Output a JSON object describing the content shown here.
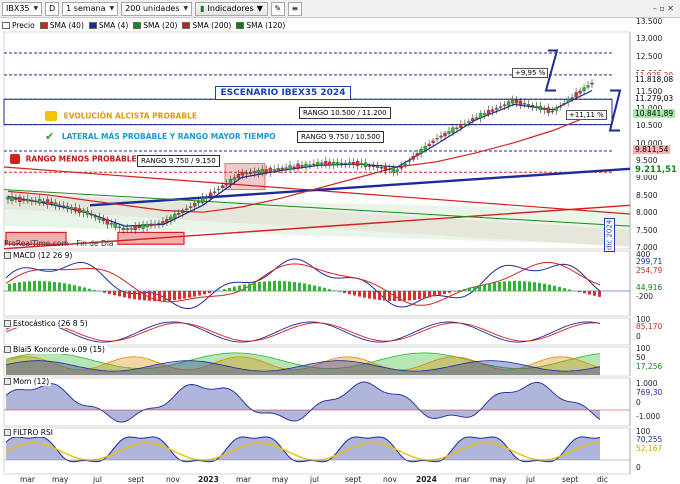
{
  "toolbar": {
    "symbol": "IBX35",
    "period_icon": "D",
    "timeframe": "1 semana",
    "units": "200 unidades",
    "indicators_button": "Indicadores",
    "window_controls": "– ▫ ✕"
  },
  "legend": {
    "items": [
      {
        "label": "Precio",
        "color": "#ffffff"
      },
      {
        "label": "SMA (40)",
        "color": "#d62020"
      },
      {
        "label": "SMA (4)",
        "color": "#1d2b9a"
      },
      {
        "label": "SMA (20)",
        "color": "#1a8a1a"
      },
      {
        "label": "SMA (200)",
        "color": "#c02020"
      },
      {
        "label": "SMA (120)",
        "color": "#108010"
      }
    ]
  },
  "main_chart": {
    "title": "ESCENARIO IBEX35 2024",
    "watermark": "ProRealTime.com - Fin de Día",
    "price_axis": [
      "13.500",
      "13.000",
      "12.500",
      "12.000",
      "11.500",
      "11.000",
      "10.500",
      "10.000",
      "9.500",
      "9.000",
      "8.500",
      "8.000",
      "7.500",
      "7.000"
    ],
    "price_tags": [
      {
        "text": "11.925,20",
        "color": "#d62020",
        "bg": "#ffffff"
      },
      {
        "text": "11.818,08",
        "color": "#000000",
        "bg": "#ffffff"
      },
      {
        "text": "11.279,03",
        "color": "#000000",
        "bg": "#ffffff"
      },
      {
        "text": "10.841,89",
        "color": "#000000",
        "bg": "#a8e6a8"
      },
      {
        "text": "9.811,54",
        "color": "#000000",
        "bg": "#f5b0b0"
      },
      {
        "text": "9.211,51",
        "color": "#118811",
        "bg": "#ffffff"
      }
    ],
    "annotations": {
      "evolucion": "EVOLUCIÓN ALCISTA PROBABLE",
      "lateral": "LATERAL MÁS PROBABLE Y RANGO MAYOR TIEMPO",
      "rango_menos": "RANGO MENOS PROBABLE",
      "rango_a": "RANGO 10.500 / 11.200",
      "rango_b": "RANGO 9.750 / 10.500",
      "rango_c": "RANGO 9.750 / 9.150",
      "pct_up": "+9,95 %",
      "pct_mid": "+11,11 %",
      "dic": "dic 2024"
    }
  },
  "panels": {
    "macd": {
      "label": "MACD (12 26 9)",
      "values": [
        "299,71",
        "254,79",
        "44,916"
      ],
      "axis": [
        "400",
        "-200"
      ]
    },
    "stoch": {
      "label": "Estocástico (26 8 5)",
      "values": [
        "85,170"
      ],
      "axis": [
        "100",
        "0"
      ]
    },
    "blai5": {
      "label": "Blai5 Koncorde v.09 (15)",
      "values": [
        "17,256"
      ],
      "axis": [
        "100",
        "50"
      ]
    },
    "mom": {
      "label": "Mom (12)",
      "values": [
        "769,30"
      ],
      "axis": [
        "1.000",
        "0",
        "-1.000"
      ]
    },
    "rsi": {
      "label": "FILTRO RSI",
      "values": [
        "70,255",
        "52,167"
      ],
      "axis": [
        "100",
        "50",
        "0"
      ]
    }
  },
  "x_axis": [
    {
      "label": "mar",
      "bold": false
    },
    {
      "label": "may",
      "bold": false
    },
    {
      "label": "jul",
      "bold": false
    },
    {
      "label": "sept",
      "bold": false
    },
    {
      "label": "nov",
      "bold": false
    },
    {
      "label": "2023",
      "bold": true
    },
    {
      "label": "mar",
      "bold": false
    },
    {
      "label": "may",
      "bold": false
    },
    {
      "label": "jul",
      "bold": false
    },
    {
      "label": "sept",
      "bold": false
    },
    {
      "label": "nov",
      "bold": false
    },
    {
      "label": "2024",
      "bold": true
    },
    {
      "label": "mar",
      "bold": false
    },
    {
      "label": "may",
      "bold": false
    },
    {
      "label": "jul",
      "bold": false
    },
    {
      "label": "sept",
      "bold": false
    },
    {
      "label": "dic",
      "bold": false
    }
  ],
  "chart_data": {
    "type": "line",
    "title": "ESCENARIO IBEX35 2024",
    "x": [
      "mar",
      "may",
      "jul",
      "sept",
      "nov",
      "2023",
      "mar",
      "may",
      "jul",
      "sept",
      "nov",
      "2024",
      "mar",
      "may",
      "jul",
      "sept"
    ],
    "series": [
      {
        "name": "Precio",
        "values": [
          8400,
          8300,
          8000,
          7500,
          7700,
          8350,
          9100,
          9250,
          9400,
          9400,
          9200,
          10100,
          10700,
          11200,
          10900,
          11700
        ]
      },
      {
        "name": "SMA (40)",
        "values": [
          8600,
          8500,
          8350,
          8200,
          8050,
          8000,
          8150,
          8400,
          8700,
          9000,
          9300,
          9450,
          9700,
          10000,
          10350,
          10800
        ]
      },
      {
        "name": "SMA (4)",
        "values": [
          8450,
          8250,
          8000,
          7600,
          7650,
          8200,
          9000,
          9200,
          9350,
          9380,
          9300,
          9950,
          10650,
          11100,
          10950,
          11500
        ]
      }
    ],
    "ylabel": "",
    "ylim": [
      7000,
      13500
    ],
    "grid": false,
    "legend": "top-left"
  }
}
